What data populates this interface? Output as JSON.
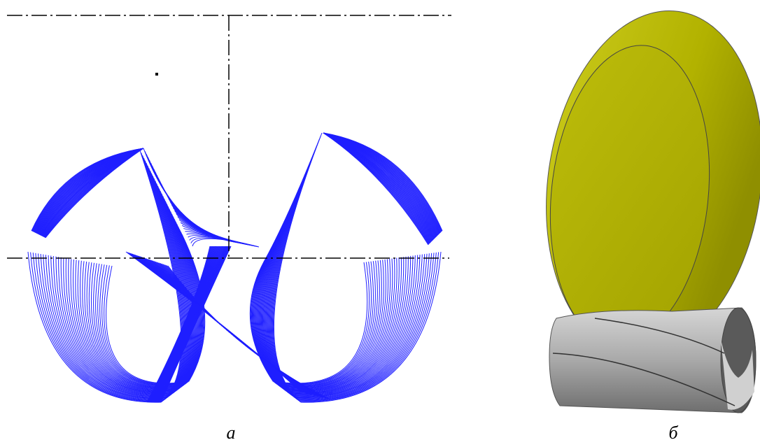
{
  "panels": [
    {
      "label": "а"
    },
    {
      "label": "б"
    }
  ]
}
